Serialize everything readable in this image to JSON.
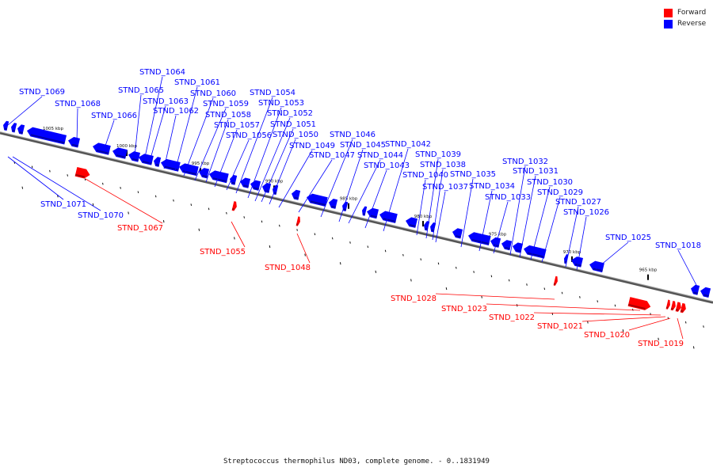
{
  "legend": {
    "items": [
      {
        "label": "Forward",
        "color": "#ff0000"
      },
      {
        "label": "Reverse",
        "color": "#0000ff"
      }
    ]
  },
  "caption": "Streptococcus thermophilus ND03, complete genome. - 0..1831949",
  "ticks": [
    "1005 kbp",
    "1000 kbp",
    "995 kbp",
    "990 kbp",
    "985 kbp",
    "980 kbp",
    "975 kbp",
    "970 kbp",
    "965 kbp"
  ],
  "reverse_genes": [
    "STND_1069",
    "STND_1068",
    "STND_1066",
    "STND_1065",
    "STND_1064",
    "STND_1063",
    "STND_1062",
    "STND_1061",
    "STND_1060",
    "STND_1059",
    "STND_1058",
    "STND_1057",
    "STND_1056",
    "STND_1054",
    "STND_1053",
    "STND_1052",
    "STND_1051",
    "STND_1050",
    "STND_1049",
    "STND_1047",
    "STND_1046",
    "STND_1045",
    "STND_1044",
    "STND_1043",
    "STND_1042",
    "STND_1040",
    "STND_1039",
    "STND_1038",
    "STND_1037",
    "STND_1035",
    "STND_1034",
    "STND_1033",
    "STND_1032",
    "STND_1031",
    "STND_1030",
    "STND_1029",
    "STND_1027",
    "STND_1026",
    "STND_1025",
    "STND_1018",
    "STND_1071",
    "STND_1070"
  ],
  "forward_genes": [
    "STND_1067",
    "STND_1055",
    "STND_1048",
    "STND_1028",
    "STND_1023",
    "STND_1022",
    "STND_1021",
    "STND_1020",
    "STND_1019"
  ]
}
